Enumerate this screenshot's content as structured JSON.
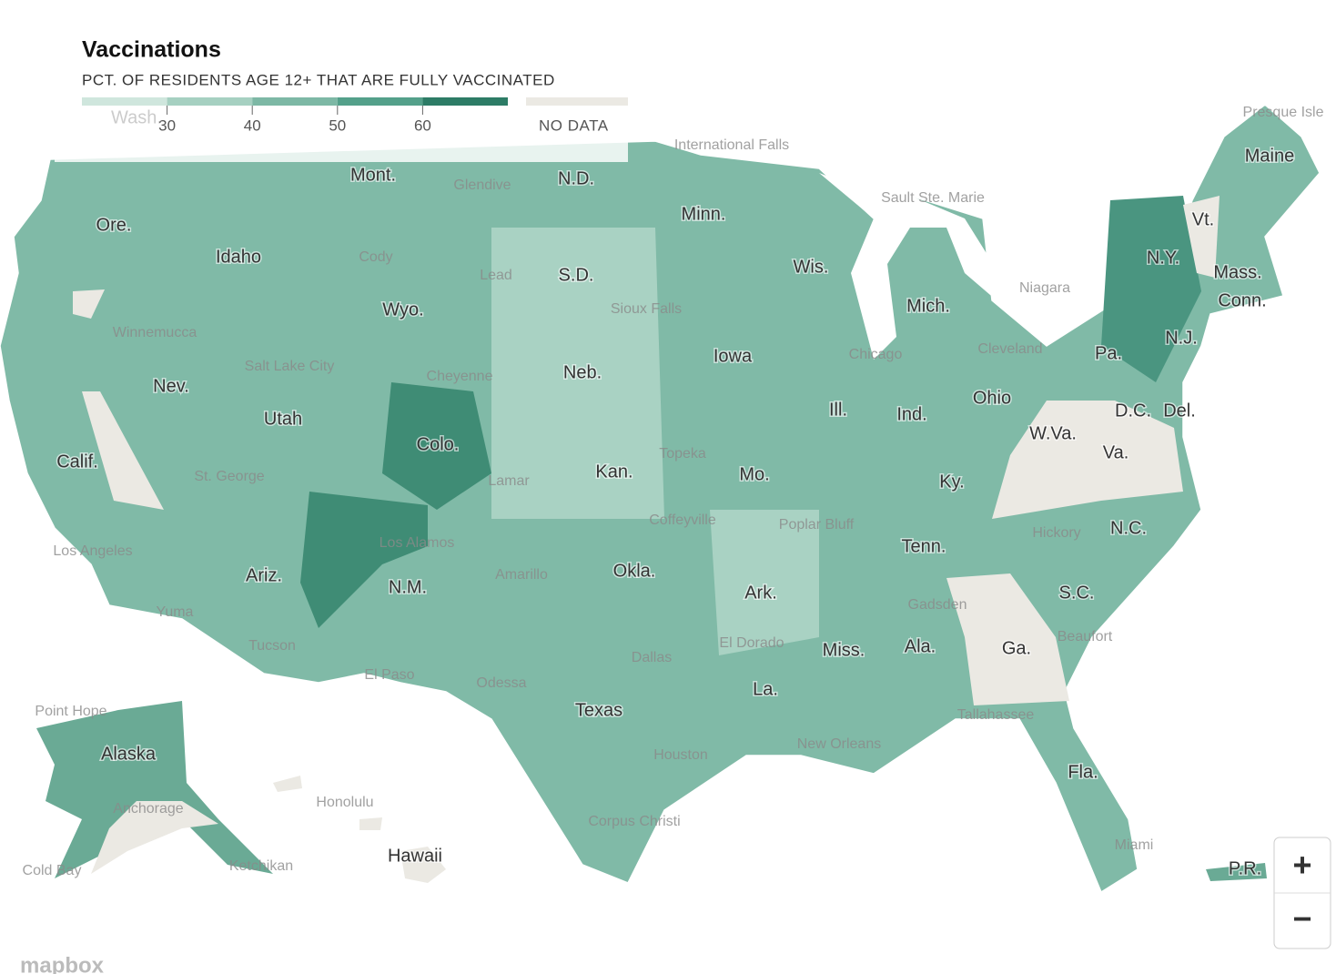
{
  "header": {
    "title": "Vaccinations",
    "subtitle": "PCT. OF RESIDENTS AGE 12+ THAT ARE FULLY VACCINATED"
  },
  "legend": {
    "range": [
      20,
      70
    ],
    "ticks": [
      30,
      40,
      50,
      60
    ],
    "colors": [
      "#cfe6dd",
      "#a6d0c1",
      "#7db8a5",
      "#54a08a",
      "#2d7c66"
    ],
    "no_data": "NO DATA",
    "no_data_color": "#ebe9e3"
  },
  "states": [
    "Wash.",
    "Mont.",
    "N.D.",
    "Minn.",
    "Ore.",
    "Idaho",
    "Wyo.",
    "S.D.",
    "Wis.",
    "Mich.",
    "N.Y.",
    "Vt.",
    "Maine",
    "Mass.",
    "Conn.",
    "N.J.",
    "Pa.",
    "Iowa",
    "Neb.",
    "Nev.",
    "Utah",
    "Ill.",
    "Ind.",
    "Ohio",
    "Colo.",
    "Calif.",
    "Kan.",
    "Mo.",
    "Ky.",
    "W.Va.",
    "Va.",
    "D.C.",
    "Del.",
    "Tenn.",
    "N.C.",
    "Okla.",
    "Ariz.",
    "N.M.",
    "Ark.",
    "S.C.",
    "Miss.",
    "Ala.",
    "Ga.",
    "La.",
    "Texas",
    "Fla.",
    "Alaska",
    "Hawaii",
    "P.R."
  ],
  "cities": [
    "International Falls",
    "Sault Ste. Marie",
    "Presque Isle",
    "Glendive",
    "Cody",
    "Lead",
    "Sioux Falls",
    "Niagara",
    "Chicago",
    "Cleveland",
    "Winnemucca",
    "Salt Lake City",
    "Cheyenne",
    "St. George",
    "Lamar",
    "Topeka",
    "Coffeyville",
    "Poplar Bluff",
    "Hickory",
    "Los Angeles",
    "Los Alamos",
    "Amarillo",
    "Yuma",
    "Tucson",
    "El Paso",
    "Odessa",
    "Dallas",
    "El Dorado",
    "Gadsden",
    "Beaufort",
    "Tallahassee",
    "Houston",
    "New Orleans",
    "Corpus Christi",
    "Miami",
    "Point Hope",
    "Anchorage",
    "Honolulu",
    "Ketchikan",
    "Cold Bay"
  ],
  "controls": {
    "zoom_in": "+",
    "zoom_out": "−"
  },
  "attribution": "mapbox"
}
